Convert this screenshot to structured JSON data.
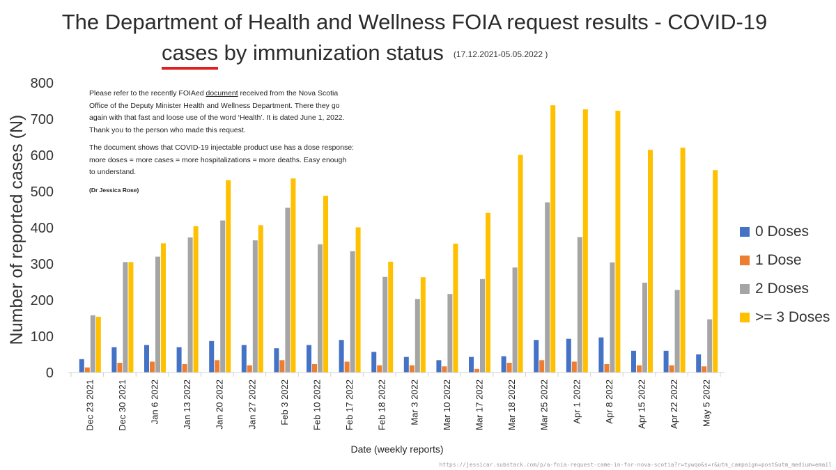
{
  "title_line1": "The Department of Health and Wellness FOIA request results - COVID-19",
  "title_line2_highlight": "cases",
  "title_line2_rest": " by immunization status",
  "date_range": "(17.12.2021-05.05.2022 )",
  "note": {
    "p1_before": "Please refer to the recently FOIAed ",
    "p1_link": "document",
    "p1_after": " received from the Nova Scotia Office of the Deputy Minister Health and Wellness Department. There they go again with that fast and loose use of the word ‘Health’. It is dated June 1, 2022. Thank you to the person who made this request.",
    "p2": "The document shows that COVID-19 injectable product use has a dose response: more doses = more cases = more hospitalizations = more deaths. Easy enough to understand.",
    "signature": "(Dr Jessica Rose)"
  },
  "source_url": "https://jessicar.substack.com/p/a-foia-request-came-in-for-nova-scotia?r=tywqo&s=r&utm_campaign=post&utm_medium=email",
  "chart_data": {
    "type": "bar",
    "title": "The Department of Health and Wellness FOIA request results - COVID-19 cases by immunization status",
    "xlabel": "Date (weekly reports)",
    "ylabel": "Number of reported cases (N)",
    "ylim": [
      0,
      800
    ],
    "yticks": [
      "0",
      "100",
      "200",
      "300",
      "400",
      "500",
      "600",
      "700",
      "800"
    ],
    "grid": false,
    "legend_position": "right",
    "categories": [
      "Dec 23 2021",
      "Dec 30 2021",
      "Jan 6 2022",
      "Jan 13 2022",
      "Jan 20 2022",
      "Jan 27 2022",
      "Feb 3 2022",
      "Feb 10 2022",
      "Feb 17 2022",
      "Feb 18 2022",
      "Mar 3 2022",
      "Mar 10 2022",
      "Mar 17 2022",
      "Mar 18 2022",
      "Mar 25 2022",
      "Apr 1 2022",
      "Apr 8 2022",
      "Apr 15 2022",
      "Apr 22 2022",
      "May 5 2022"
    ],
    "series": [
      {
        "name": "0 Doses",
        "color": "#4472C4",
        "values": [
          37,
          70,
          76,
          70,
          87,
          76,
          67,
          76,
          90,
          57,
          43,
          34,
          43,
          45,
          90,
          93,
          97,
          60,
          60,
          50
        ]
      },
      {
        "name": "1 Dose",
        "color": "#ED7D31",
        "values": [
          14,
          27,
          30,
          23,
          34,
          20,
          34,
          23,
          30,
          20,
          20,
          17,
          10,
          27,
          34,
          30,
          23,
          20,
          20,
          17
        ]
      },
      {
        "name": "2 Doses",
        "color": "#A5A5A5",
        "values": [
          158,
          305,
          320,
          373,
          420,
          365,
          455,
          354,
          335,
          264,
          203,
          217,
          258,
          290,
          470,
          374,
          304,
          248,
          228,
          147
        ]
      },
      {
        "name": ">= 3 Doses",
        "color": "#FFC000",
        "values": [
          154,
          305,
          357,
          404,
          531,
          407,
          536,
          488,
          401,
          306,
          263,
          356,
          441,
          601,
          738,
          727,
          723,
          615,
          621,
          559
        ]
      }
    ]
  }
}
